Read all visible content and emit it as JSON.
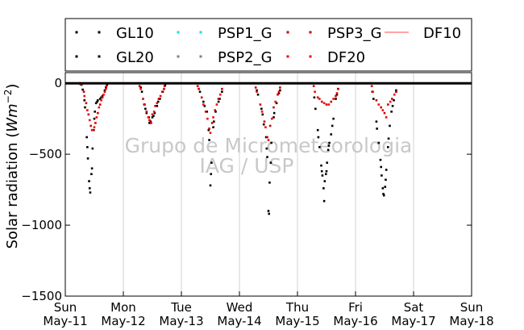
{
  "chart_data": {
    "type": "scatter",
    "ylabel": "Solar radiation (Wm⁻²)",
    "ylabel_parts": {
      "prefix": "Solar radiation (",
      "unit_base": "Wm",
      "unit_exp": "−2",
      "suffix": ")"
    },
    "ylim": [
      -1500,
      75
    ],
    "yticks": [
      0,
      -500,
      -1000,
      -1500
    ],
    "ytick_labels": [
      "0",
      "−500",
      "−1000",
      "−1500"
    ],
    "xlim": [
      "2014-05-11 00:00",
      "2014-05-18 00:00"
    ],
    "xticks": [
      {
        "day": "Sun",
        "date": "May-11"
      },
      {
        "day": "Mon",
        "date": "May-12"
      },
      {
        "day": "Tue",
        "date": "May-13"
      },
      {
        "day": "Wed",
        "date": "May-14"
      },
      {
        "day": "Thu",
        "date": "May-15"
      },
      {
        "day": "Fri",
        "date": "May-16"
      },
      {
        "day": "Sat",
        "date": "May-17"
      },
      {
        "day": "Sun",
        "date": "May-18"
      }
    ],
    "grid": "vertical",
    "legend": {
      "location": "top",
      "columns": 4
    },
    "watermark": [
      "Grupo de Micrometeorologia",
      "IAG / USP"
    ],
    "series": [
      {
        "name": "GL10",
        "color": "#000000",
        "marker": "dot",
        "points": [
          [
            0.25,
            0
          ],
          [
            0.3,
            -45
          ],
          [
            0.34,
            -170
          ],
          [
            0.37,
            -380
          ],
          [
            0.39,
            -530
          ],
          [
            0.41,
            -690
          ],
          [
            0.43,
            -770
          ],
          [
            0.45,
            -640
          ],
          [
            0.47,
            -460
          ],
          [
            0.49,
            -330
          ],
          [
            0.51,
            -200
          ],
          [
            0.53,
            -140
          ],
          [
            0.56,
            -120
          ],
          [
            0.6,
            -110
          ],
          [
            0.64,
            -90
          ],
          [
            0.68,
            -50
          ],
          [
            0.72,
            -10
          ],
          [
            1.25,
            0
          ],
          [
            1.32,
            -60
          ],
          [
            1.36,
            -150
          ],
          [
            1.4,
            -210
          ],
          [
            1.44,
            -240
          ],
          [
            1.47,
            -270
          ],
          [
            1.5,
            -240
          ],
          [
            1.54,
            -210
          ],
          [
            1.58,
            -160
          ],
          [
            1.63,
            -110
          ],
          [
            1.68,
            -60
          ],
          [
            1.72,
            -15
          ],
          [
            2.25,
            0
          ],
          [
            2.32,
            -60
          ],
          [
            2.38,
            -130
          ],
          [
            2.44,
            -200
          ],
          [
            2.48,
            -400
          ],
          [
            2.5,
            -720
          ],
          [
            2.52,
            -560
          ],
          [
            2.55,
            -310
          ],
          [
            2.59,
            -200
          ],
          [
            2.64,
            -130
          ],
          [
            2.7,
            -60
          ],
          [
            3.25,
            0
          ],
          [
            3.32,
            -80
          ],
          [
            3.38,
            -180
          ],
          [
            3.42,
            -290
          ],
          [
            3.46,
            -380
          ],
          [
            3.48,
            -520
          ],
          [
            3.5,
            -900
          ],
          [
            3.52,
            -700
          ],
          [
            3.55,
            -420
          ],
          [
            3.59,
            -240
          ],
          [
            3.64,
            -140
          ],
          [
            3.7,
            -50
          ],
          [
            4.25,
            0
          ],
          [
            4.31,
            -180
          ],
          [
            4.35,
            -330
          ],
          [
            4.38,
            -450
          ],
          [
            4.41,
            -580
          ],
          [
            4.43,
            -650
          ],
          [
            4.45,
            -740
          ],
          [
            4.47,
            -690
          ],
          [
            4.49,
            -640
          ],
          [
            4.51,
            -560
          ],
          [
            4.53,
            -470
          ],
          [
            4.55,
            -420
          ],
          [
            4.58,
            -360
          ],
          [
            4.62,
            -250
          ],
          [
            4.66,
            -110
          ],
          [
            4.7,
            -40
          ],
          [
            5.25,
            0
          ],
          [
            5.31,
            -110
          ],
          [
            5.36,
            -270
          ],
          [
            5.4,
            -420
          ],
          [
            5.43,
            -540
          ],
          [
            5.45,
            -650
          ],
          [
            5.47,
            -740
          ],
          [
            5.49,
            -790
          ],
          [
            5.51,
            -730
          ],
          [
            5.53,
            -610
          ],
          [
            5.56,
            -450
          ],
          [
            5.59,
            -300
          ],
          [
            5.62,
            -200
          ],
          [
            5.66,
            -120
          ],
          [
            5.7,
            -50
          ]
        ]
      },
      {
        "name": "GL20",
        "color": "#000000",
        "marker": "dot",
        "points": [
          [
            0.28,
            -10
          ],
          [
            0.33,
            -120
          ],
          [
            0.38,
            -450
          ],
          [
            0.42,
            -740
          ],
          [
            0.46,
            -600
          ],
          [
            0.5,
            -250
          ],
          [
            0.55,
            -130
          ],
          [
            0.62,
            -100
          ],
          [
            0.7,
            -30
          ],
          [
            1.3,
            -30
          ],
          [
            1.38,
            -180
          ],
          [
            1.45,
            -280
          ],
          [
            1.52,
            -230
          ],
          [
            1.6,
            -130
          ],
          [
            1.7,
            -40
          ],
          [
            2.3,
            -40
          ],
          [
            2.4,
            -160
          ],
          [
            2.47,
            -330
          ],
          [
            2.51,
            -640
          ],
          [
            2.56,
            -270
          ],
          [
            2.66,
            -110
          ],
          [
            3.3,
            -50
          ],
          [
            3.4,
            -220
          ],
          [
            3.47,
            -460
          ],
          [
            3.51,
            -920
          ],
          [
            3.54,
            -560
          ],
          [
            3.6,
            -210
          ],
          [
            3.68,
            -70
          ],
          [
            4.29,
            -100
          ],
          [
            4.36,
            -380
          ],
          [
            4.42,
            -620
          ],
          [
            4.46,
            -830
          ],
          [
            4.5,
            -620
          ],
          [
            4.54,
            -440
          ],
          [
            4.6,
            -300
          ],
          [
            4.68,
            -80
          ],
          [
            5.29,
            -60
          ],
          [
            5.37,
            -320
          ],
          [
            5.44,
            -590
          ],
          [
            5.48,
            -780
          ],
          [
            5.52,
            -680
          ],
          [
            5.57,
            -390
          ],
          [
            5.64,
            -160
          ],
          [
            5.7,
            -60
          ]
        ]
      },
      {
        "name": "PSP1_G",
        "color": "#00e5e5",
        "marker": "dot",
        "points": []
      },
      {
        "name": "PSP2_G",
        "color": "#808080",
        "marker": "dot",
        "points": []
      },
      {
        "name": "PSP3_G",
        "color": "#cc0000",
        "marker": "dot",
        "points": [
          [
            0.26,
            -5
          ],
          [
            0.32,
            -60
          ],
          [
            0.36,
            -140
          ],
          [
            0.4,
            -220
          ],
          [
            0.44,
            -300
          ],
          [
            0.48,
            -330
          ],
          [
            0.52,
            -280
          ],
          [
            0.56,
            -210
          ],
          [
            0.6,
            -150
          ],
          [
            0.64,
            -100
          ],
          [
            0.68,
            -60
          ],
          [
            0.71,
            -20
          ],
          [
            1.28,
            -20
          ],
          [
            1.34,
            -110
          ],
          [
            1.4,
            -200
          ],
          [
            1.45,
            -260
          ],
          [
            1.5,
            -220
          ],
          [
            1.55,
            -160
          ],
          [
            1.61,
            -110
          ],
          [
            1.67,
            -60
          ],
          [
            1.71,
            -20
          ],
          [
            2.28,
            -20
          ],
          [
            2.35,
            -100
          ],
          [
            2.42,
            -200
          ],
          [
            2.48,
            -320
          ],
          [
            2.53,
            -280
          ],
          [
            2.58,
            -190
          ],
          [
            2.64,
            -110
          ],
          [
            2.7,
            -40
          ],
          [
            3.28,
            -30
          ],
          [
            3.36,
            -150
          ],
          [
            3.43,
            -270
          ],
          [
            3.48,
            -380
          ],
          [
            3.53,
            -300
          ],
          [
            3.59,
            -170
          ],
          [
            3.66,
            -80
          ],
          [
            3.7,
            -30
          ],
          [
            4.28,
            -20
          ],
          [
            4.35,
            -100
          ],
          [
            4.42,
            -130
          ],
          [
            4.5,
            -150
          ],
          [
            4.58,
            -130
          ],
          [
            4.66,
            -90
          ],
          [
            4.7,
            -40
          ],
          [
            5.28,
            -20
          ],
          [
            5.36,
            -120
          ],
          [
            5.44,
            -170
          ],
          [
            5.5,
            -210
          ],
          [
            5.56,
            -150
          ],
          [
            5.63,
            -110
          ],
          [
            5.7,
            -60
          ]
        ]
      },
      {
        "name": "DF20",
        "color": "#ff0000",
        "marker": "dot",
        "points": [
          [
            0.27,
            -10
          ],
          [
            0.33,
            -90
          ],
          [
            0.38,
            -190
          ],
          [
            0.42,
            -260
          ],
          [
            0.46,
            -330
          ],
          [
            0.5,
            -310
          ],
          [
            0.54,
            -240
          ],
          [
            0.58,
            -170
          ],
          [
            0.62,
            -120
          ],
          [
            0.66,
            -80
          ],
          [
            0.7,
            -40
          ],
          [
            1.3,
            -40
          ],
          [
            1.37,
            -150
          ],
          [
            1.43,
            -240
          ],
          [
            1.48,
            -280
          ],
          [
            1.53,
            -200
          ],
          [
            1.58,
            -140
          ],
          [
            1.64,
            -90
          ],
          [
            1.7,
            -40
          ],
          [
            2.3,
            -40
          ],
          [
            2.38,
            -150
          ],
          [
            2.45,
            -250
          ],
          [
            2.5,
            -350
          ],
          [
            2.55,
            -240
          ],
          [
            2.61,
            -150
          ],
          [
            2.67,
            -80
          ],
          [
            3.3,
            -60
          ],
          [
            3.39,
            -200
          ],
          [
            3.45,
            -310
          ],
          [
            3.5,
            -400
          ],
          [
            3.56,
            -250
          ],
          [
            3.62,
            -130
          ],
          [
            3.68,
            -60
          ],
          [
            4.3,
            -60
          ],
          [
            4.38,
            -110
          ],
          [
            4.46,
            -140
          ],
          [
            4.54,
            -150
          ],
          [
            4.62,
            -110
          ],
          [
            4.68,
            -70
          ],
          [
            5.3,
            -60
          ],
          [
            5.4,
            -150
          ],
          [
            5.47,
            -190
          ],
          [
            5.53,
            -240
          ],
          [
            5.6,
            -130
          ],
          [
            5.67,
            -80
          ]
        ]
      },
      {
        "name": "DF10",
        "color": "#ff7070",
        "marker": "line",
        "points": []
      }
    ],
    "reference_line": {
      "y": 0,
      "color": "#000000"
    }
  }
}
